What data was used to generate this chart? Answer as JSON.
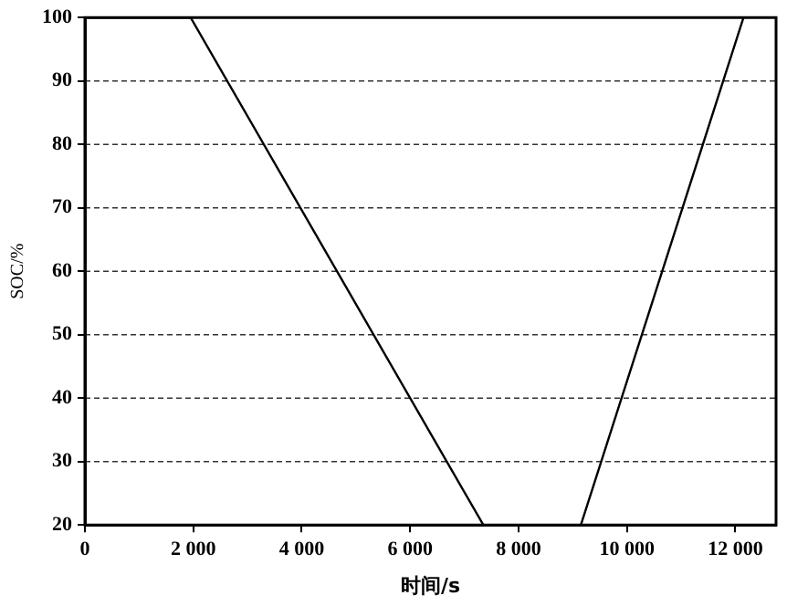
{
  "chart_data": {
    "type": "line",
    "xlabel": "时间/s",
    "ylabel": "SOC/%",
    "x": [
      0,
      1950,
      7350,
      9150,
      12150
    ],
    "series": [
      {
        "color": "#000000",
        "values": [
          100,
          100,
          20,
          20,
          100
        ]
      }
    ],
    "xlim": [
      0,
      12750
    ],
    "xticks": [
      0,
      {
        "value": 2000,
        "label": "2 000"
      },
      {
        "value": 4000,
        "label": "4 000"
      },
      {
        "value": 6000,
        "label": "6 000"
      },
      {
        "value": 8000,
        "label": "8 000"
      },
      {
        "value": 10000,
        "label": "10 000"
      },
      {
        "value": 12000,
        "label": "12 000"
      }
    ],
    "ylim": [
      20,
      100
    ],
    "yticks": [
      20,
      30,
      40,
      50,
      60,
      70,
      80,
      90,
      100
    ],
    "grid": "y",
    "legend": false,
    "marker": "none",
    "line_style": "solid"
  }
}
